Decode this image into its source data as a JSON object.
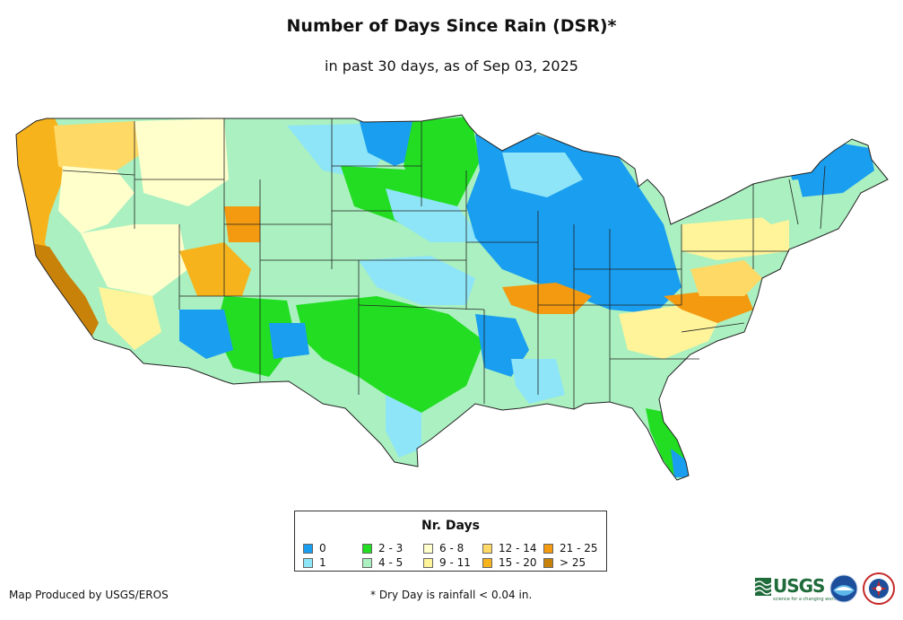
{
  "header": {
    "title": "Number of Days Since Rain (DSR)*",
    "subtitle": "in past 30 days, as of Sep 03, 2025"
  },
  "legend": {
    "title": "Nr. Days",
    "items": [
      {
        "label": "0",
        "color": "#1a9ef0"
      },
      {
        "label": "1",
        "color": "#8ee5f7"
      },
      {
        "label": "2 - 3",
        "color": "#22dd22"
      },
      {
        "label": "4 - 5",
        "color": "#aaf0c0"
      },
      {
        "label": "6 - 8",
        "color": "#ffffcc"
      },
      {
        "label": "9 - 11",
        "color": "#fff499"
      },
      {
        "label": "12 - 14",
        "color": "#ffd966"
      },
      {
        "label": "15 - 20",
        "color": "#f6b31c"
      },
      {
        "label": "21 - 25",
        "color": "#f39a10"
      },
      {
        "label": "> 25",
        "color": "#c8820a"
      }
    ]
  },
  "footer": {
    "credit": "Map Produced by USGS/EROS",
    "note": "* Dry Day is rainfall < 0.04 in."
  },
  "logos": {
    "usgs": "USGS",
    "usgs_tagline": "science for a changing world",
    "noaa": "noaa",
    "nws": "NWS"
  }
}
